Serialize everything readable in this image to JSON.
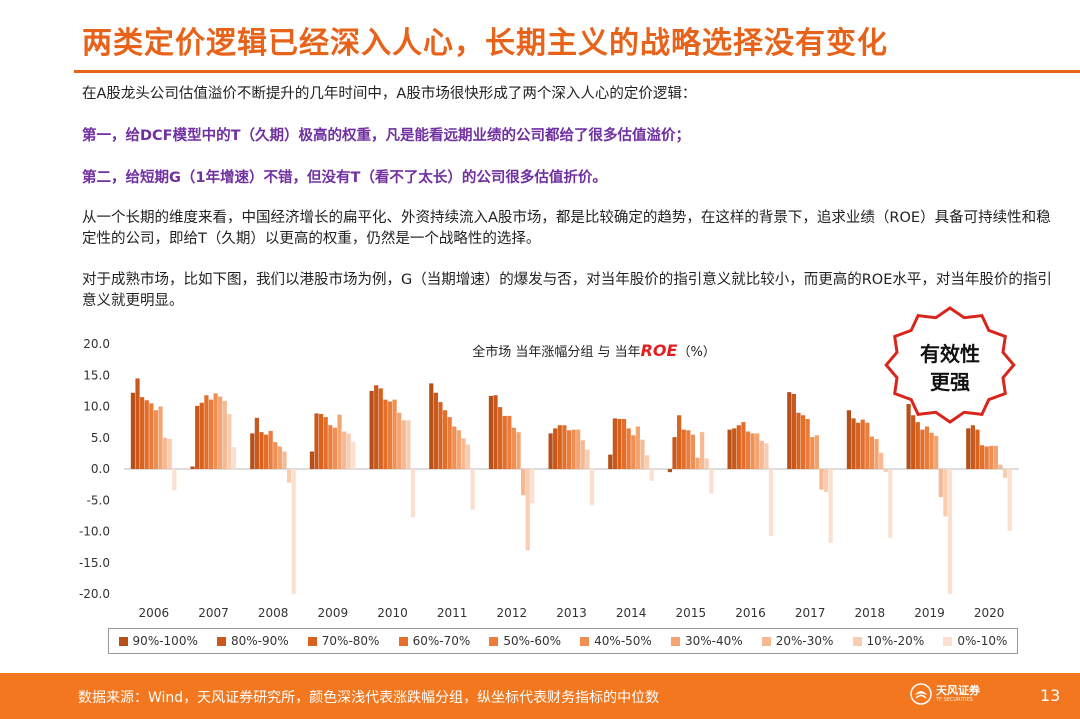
{
  "title": "两类定价逻辑已经深入人心，长期主义的战略选择没有变化",
  "paragraphs": {
    "p1": "在A股龙头公司估值溢价不断提升的几年时间中，A股市场很快形成了两个深入人心的定价逻辑：",
    "p2": "第一，给DCF模型中的T（久期）极高的权重，凡是能看远期业绩的公司都给了很多估值溢价；",
    "p3": "第二，给短期G（1年增速）不错，但没有T（看不了太长）的公司很多估值折价。",
    "p4": "从一个长期的维度来看，中国经济增长的扁平化、外资持续流入A股市场，都是比较确定的趋势，在这样的背景下，追求业绩（ROE）具备可持续性和稳定性的公司，即给T（久期）以更高的权重，仍然是一个战略性的选择。",
    "p5": "对于成熟市场，比如下图，我们以港股市场为例，G（当期增速）的爆发与否，对当年股价的指引意义就比较小，而更高的ROE水平，对当年股价的指引意义就更明显。"
  },
  "badge": {
    "line1": "有效性",
    "line2": "更强",
    "border_color": "#d9261c"
  },
  "footer": {
    "source": "数据来源：Wind，天风证券研究所，颜色深浅代表涨跌幅分组，纵坐标代表财务指标的中位数",
    "page": "13",
    "brand": "天风证券",
    "brand_en": "TF SECURITIES"
  },
  "colors": {
    "accent": "#e8631a",
    "footer": "#f2771f",
    "purple": "#7030a0",
    "roe": "#e02020"
  },
  "chart_data": {
    "type": "bar",
    "title_parts": [
      "全市场  当年涨幅分组  与  当年",
      "ROE",
      "（%）"
    ],
    "ylim": [
      -20,
      20
    ],
    "yticks": [
      "20.0",
      "15.0",
      "10.0",
      "5.0",
      "0.0",
      "-5.0",
      "-10.0",
      "-15.0",
      "-20.0"
    ],
    "categories": [
      "2006",
      "2007",
      "2008",
      "2009",
      "2010",
      "2011",
      "2012",
      "2013",
      "2014",
      "2015",
      "2016",
      "2017",
      "2018",
      "2019",
      "2020"
    ],
    "series": [
      {
        "name": "90%-100%",
        "color": "#b5501a",
        "values": [
          12.2,
          0.4,
          5.7,
          2.8,
          12.5,
          13.7,
          11.7,
          5.7,
          2.3,
          -0.5,
          6.3,
          12.3,
          9.4,
          10.4,
          6.5
        ]
      },
      {
        "name": "80%-90%",
        "color": "#c9581c",
        "values": [
          14.5,
          10.1,
          8.2,
          8.9,
          13.4,
          12.2,
          11.8,
          6.5,
          8.1,
          5.1,
          6.5,
          12.0,
          8.1,
          8.6,
          7.0
        ]
      },
      {
        "name": "70%-80%",
        "color": "#d8631f",
        "values": [
          11.5,
          10.6,
          5.9,
          8.8,
          12.9,
          10.7,
          9.9,
          7.0,
          8.0,
          8.6,
          7.0,
          9.0,
          7.4,
          7.5,
          6.3
        ]
      },
      {
        "name": "60%-70%",
        "color": "#e46e2a",
        "values": [
          11.0,
          11.8,
          5.5,
          8.3,
          11.1,
          9.4,
          8.5,
          7.0,
          8.0,
          6.3,
          7.5,
          8.6,
          7.9,
          6.3,
          3.8
        ]
      },
      {
        "name": "50%-60%",
        "color": "#eb7d3c",
        "values": [
          10.5,
          11.1,
          6.1,
          7.0,
          10.8,
          8.3,
          8.5,
          6.2,
          6.5,
          6.2,
          6.0,
          8.0,
          7.4,
          6.8,
          3.6
        ]
      },
      {
        "name": "40%-50%",
        "color": "#ef8f52",
        "values": [
          9.4,
          12.1,
          4.3,
          6.6,
          11.1,
          6.8,
          6.6,
          6.3,
          5.4,
          5.5,
          5.7,
          5.1,
          5.2,
          5.8,
          3.7
        ]
      },
      {
        "name": "30%-40%",
        "color": "#f3a470",
        "values": [
          10.0,
          11.6,
          3.6,
          8.7,
          9.0,
          6.2,
          5.9,
          6.3,
          6.8,
          1.8,
          5.7,
          5.4,
          4.8,
          5.3,
          3.7
        ]
      },
      {
        "name": "20%-30%",
        "color": "#f6b994",
        "values": [
          5.0,
          10.9,
          2.8,
          6.0,
          7.8,
          4.9,
          -4.2,
          4.6,
          4.7,
          5.9,
          4.5,
          -3.3,
          2.6,
          -4.5,
          0.7
        ]
      },
      {
        "name": "10%-20%",
        "color": "#f8cdb2",
        "values": [
          4.8,
          8.8,
          -2.2,
          5.7,
          7.8,
          3.9,
          -13.0,
          3.1,
          2.2,
          1.7,
          4.1,
          -3.7,
          -0.5,
          -7.6,
          -1.4
        ]
      },
      {
        "name": "0%-10%",
        "color": "#fbe0d0",
        "values": [
          -3.4,
          3.5,
          -20.0,
          4.4,
          -7.7,
          -6.5,
          -5.5,
          -5.8,
          -1.9,
          -3.9,
          -10.7,
          -11.8,
          -11.0,
          -20.0,
          -9.9
        ]
      }
    ]
  }
}
